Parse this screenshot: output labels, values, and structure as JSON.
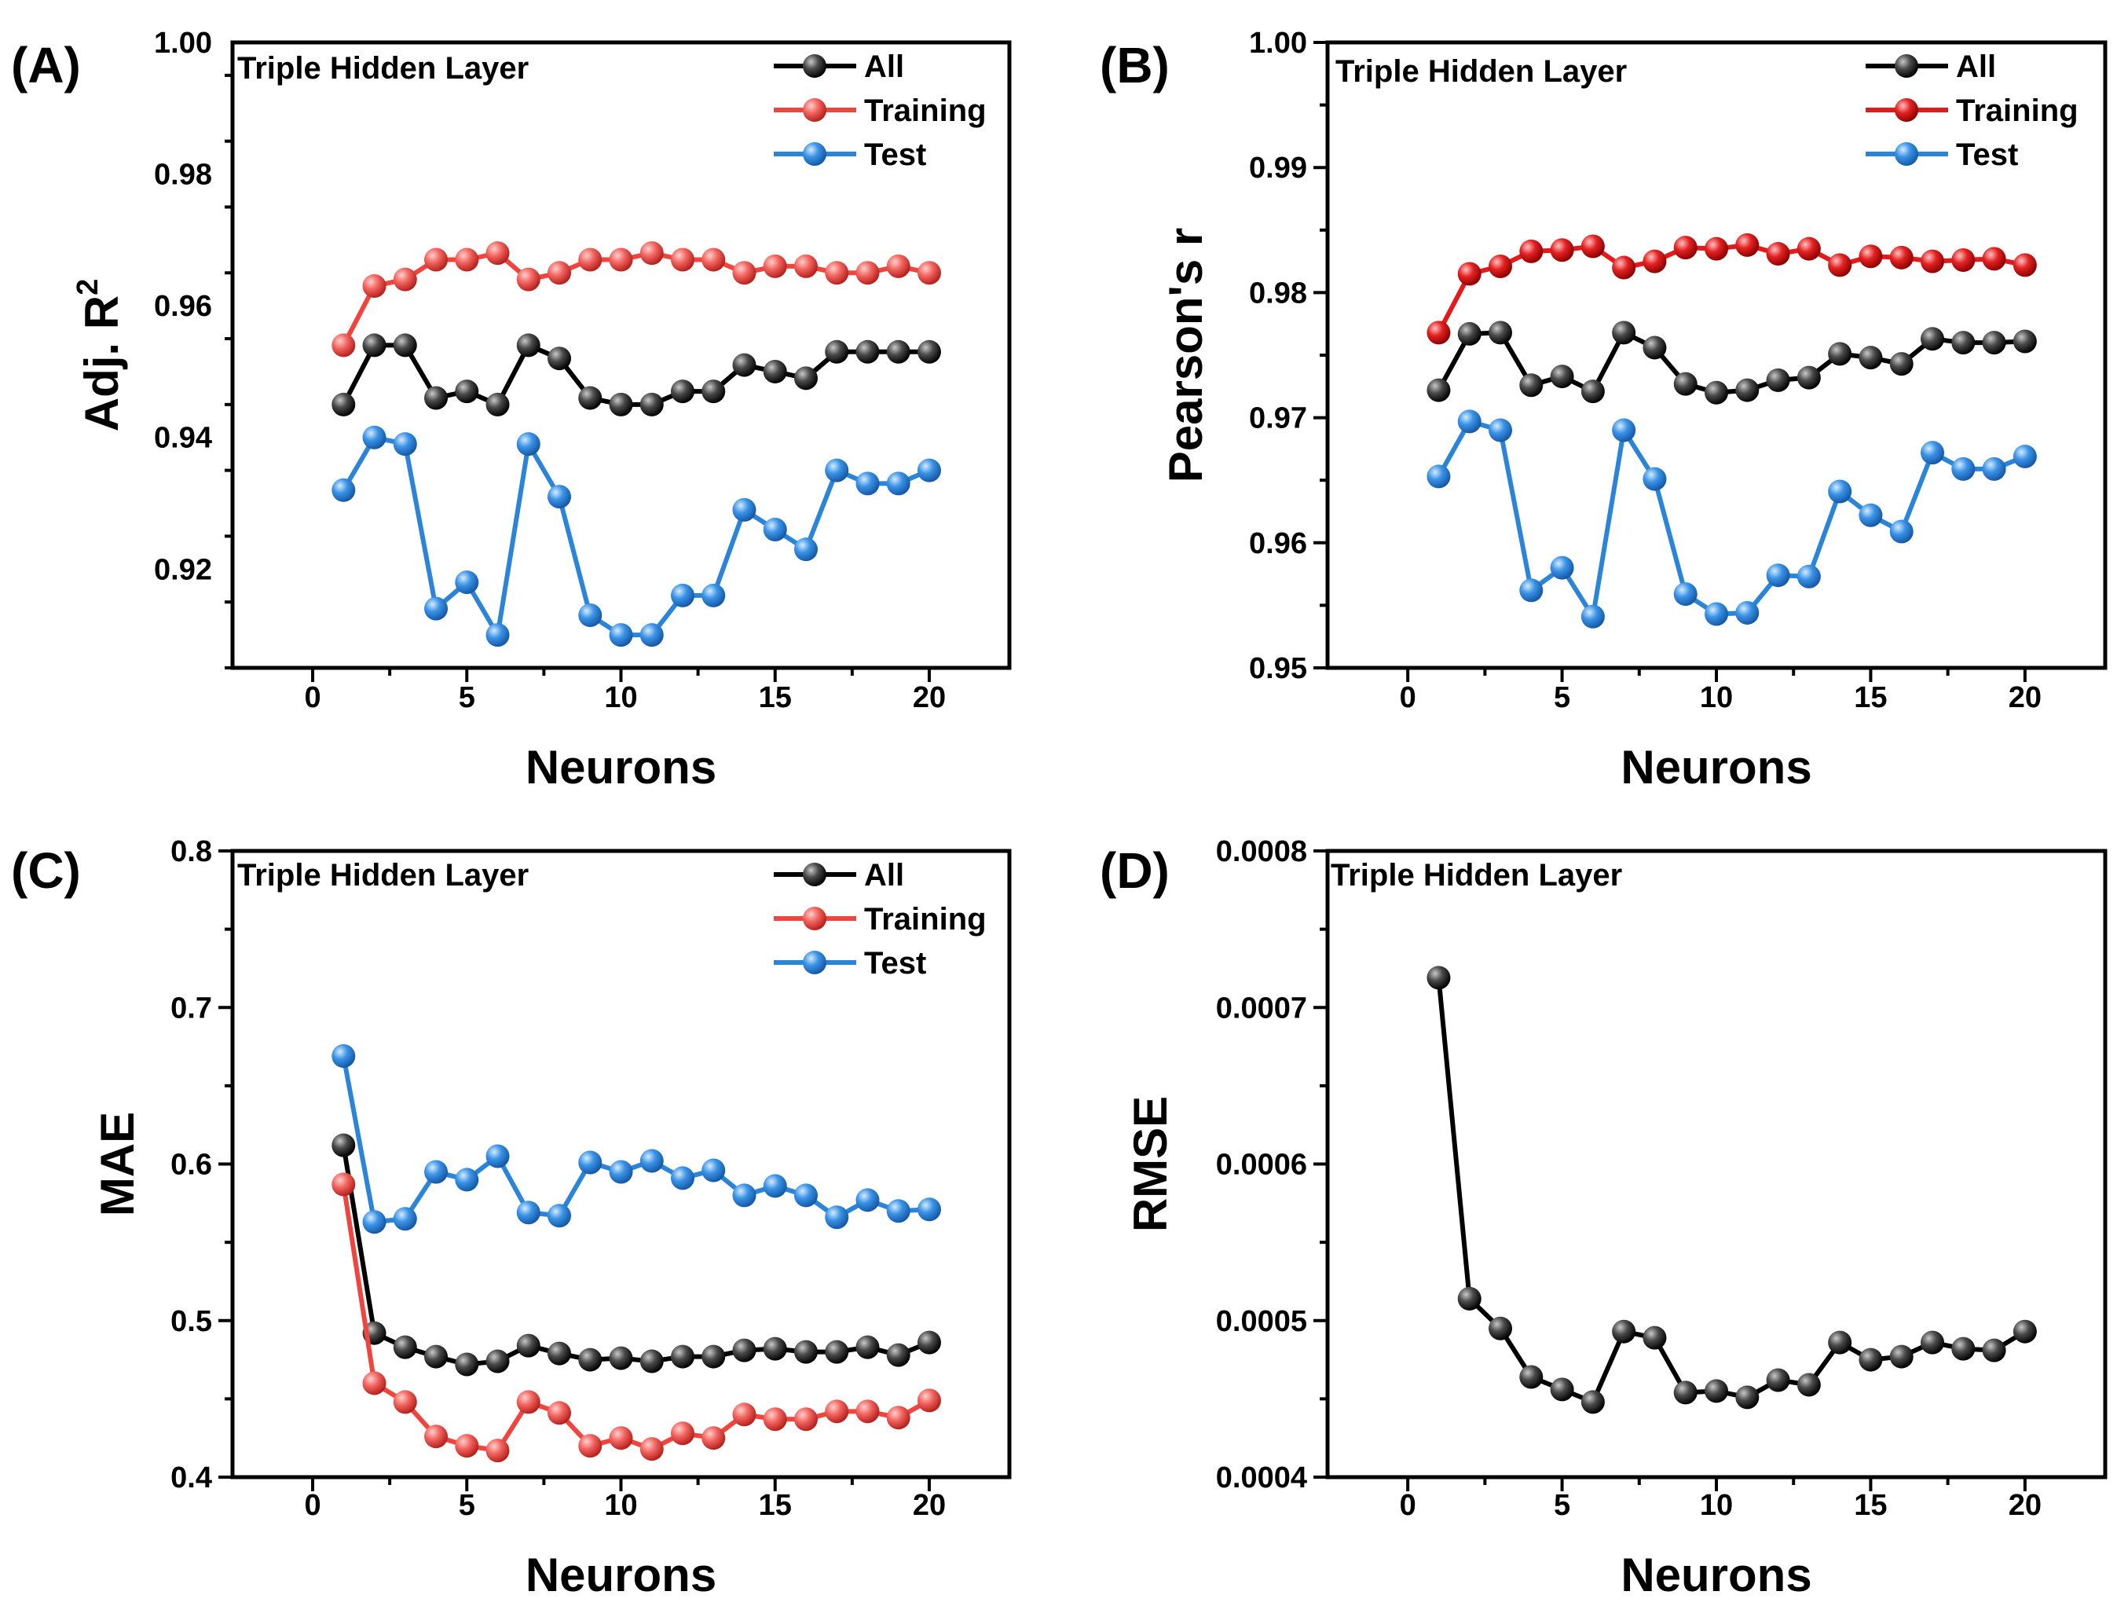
{
  "colors": {
    "All": "#000000",
    "Training_A": "#f0453f",
    "Training_B": "#e31a1c",
    "Training_C": "#f0453f",
    "Test": "#2a84d8"
  },
  "chart_data": [
    {
      "id": "A",
      "panel_label": "(A)",
      "type": "line",
      "title": "Triple Hidden Layer",
      "xlabel": "Neurons",
      "ylabel_main": "Adj. R",
      "ylabel_sup": "2",
      "xlim": [
        -2.6,
        22.6
      ],
      "ylim": [
        0.905,
        1.0
      ],
      "xticks": [
        0,
        5,
        10,
        15,
        20
      ],
      "yticks": [
        0.92,
        0.94,
        0.96,
        0.98,
        1.0
      ],
      "ytick_labels": [
        "0.92",
        "0.94",
        "0.96",
        "0.98",
        "1.00"
      ],
      "legend_position": "top-right",
      "x": [
        1,
        2,
        3,
        4,
        5,
        6,
        7,
        8,
        9,
        10,
        11,
        12,
        13,
        14,
        15,
        16,
        17,
        18,
        19,
        20
      ],
      "series": [
        {
          "name": "All",
          "color_key": "All",
          "values": [
            0.945,
            0.954,
            0.954,
            0.946,
            0.947,
            0.945,
            0.954,
            0.952,
            0.946,
            0.945,
            0.945,
            0.947,
            0.947,
            0.951,
            0.95,
            0.949,
            0.953,
            0.953,
            0.953,
            0.953
          ]
        },
        {
          "name": "Training",
          "color_key": "Training_A",
          "values": [
            0.954,
            0.963,
            0.964,
            0.967,
            0.967,
            0.968,
            0.964,
            0.965,
            0.967,
            0.967,
            0.968,
            0.967,
            0.967,
            0.965,
            0.966,
            0.966,
            0.965,
            0.965,
            0.966,
            0.965
          ]
        },
        {
          "name": "Test",
          "color_key": "Test",
          "values": [
            0.932,
            0.94,
            0.939,
            0.914,
            0.918,
            0.91,
            0.939,
            0.931,
            0.913,
            0.91,
            0.91,
            0.916,
            0.916,
            0.929,
            0.926,
            0.923,
            0.935,
            0.933,
            0.933,
            0.935
          ]
        }
      ]
    },
    {
      "id": "B",
      "panel_label": "(B)",
      "type": "line",
      "title": "Triple Hidden Layer",
      "xlabel": "Neurons",
      "ylabel_main": "Pearson's r",
      "ylabel_sup": "",
      "xlim": [
        -2.6,
        22.6
      ],
      "ylim": [
        0.95,
        1.0
      ],
      "xticks": [
        0,
        5,
        10,
        15,
        20
      ],
      "yticks": [
        0.95,
        0.96,
        0.97,
        0.98,
        0.99,
        1.0
      ],
      "ytick_labels": [
        "0.95",
        "0.96",
        "0.97",
        "0.98",
        "0.99",
        "1.00"
      ],
      "legend_position": "top-right",
      "x": [
        1,
        2,
        3,
        4,
        5,
        6,
        7,
        8,
        9,
        10,
        11,
        12,
        13,
        14,
        15,
        16,
        17,
        18,
        19,
        20
      ],
      "series": [
        {
          "name": "All",
          "color_key": "All",
          "values": [
            0.9722,
            0.9767,
            0.9768,
            0.9726,
            0.9733,
            0.9721,
            0.9768,
            0.9756,
            0.9727,
            0.972,
            0.9722,
            0.973,
            0.9732,
            0.9751,
            0.9748,
            0.9743,
            0.9763,
            0.976,
            0.976,
            0.9761
          ]
        },
        {
          "name": "Training",
          "color_key": "Training_B",
          "values": [
            0.9768,
            0.9815,
            0.9821,
            0.9833,
            0.9834,
            0.9837,
            0.982,
            0.9825,
            0.9836,
            0.9835,
            0.9838,
            0.9831,
            0.9835,
            0.9822,
            0.9829,
            0.9828,
            0.9825,
            0.9826,
            0.9827,
            0.9822
          ]
        },
        {
          "name": "Test",
          "color_key": "Test",
          "values": [
            0.9653,
            0.9697,
            0.969,
            0.9562,
            0.958,
            0.9541,
            0.969,
            0.9651,
            0.9559,
            0.9543,
            0.9544,
            0.9574,
            0.9573,
            0.9641,
            0.9622,
            0.9609,
            0.9672,
            0.9659,
            0.9659,
            0.9669
          ]
        }
      ]
    },
    {
      "id": "C",
      "panel_label": "(C)",
      "type": "line",
      "title": "Triple Hidden Layer",
      "xlabel": "Neurons",
      "ylabel_main": "MAE",
      "ylabel_sup": "",
      "xlim": [
        -2.6,
        22.6
      ],
      "ylim": [
        0.4,
        0.8
      ],
      "xticks": [
        0,
        5,
        10,
        15,
        20
      ],
      "yticks": [
        0.4,
        0.5,
        0.6,
        0.7,
        0.8
      ],
      "ytick_labels": [
        "0.4",
        "0.5",
        "0.6",
        "0.7",
        "0.8"
      ],
      "legend_position": "top-right",
      "x": [
        1,
        2,
        3,
        4,
        5,
        6,
        7,
        8,
        9,
        10,
        11,
        12,
        13,
        14,
        15,
        16,
        17,
        18,
        19,
        20
      ],
      "series": [
        {
          "name": "All",
          "color_key": "All",
          "values": [
            0.612,
            0.492,
            0.483,
            0.477,
            0.472,
            0.474,
            0.484,
            0.479,
            0.475,
            0.476,
            0.474,
            0.477,
            0.477,
            0.481,
            0.482,
            0.48,
            0.48,
            0.483,
            0.478,
            0.486
          ]
        },
        {
          "name": "Training",
          "color_key": "Training_C",
          "values": [
            0.587,
            0.46,
            0.448,
            0.426,
            0.42,
            0.417,
            0.448,
            0.441,
            0.42,
            0.425,
            0.418,
            0.428,
            0.425,
            0.44,
            0.437,
            0.437,
            0.442,
            0.442,
            0.438,
            0.449
          ]
        },
        {
          "name": "Test",
          "color_key": "Test",
          "values": [
            0.669,
            0.563,
            0.565,
            0.595,
            0.59,
            0.605,
            0.569,
            0.567,
            0.601,
            0.595,
            0.602,
            0.591,
            0.596,
            0.58,
            0.586,
            0.58,
            0.566,
            0.577,
            0.57,
            0.571
          ]
        }
      ]
    },
    {
      "id": "D",
      "panel_label": "(D)",
      "type": "line",
      "title": "Triple Hidden Layer",
      "xlabel": "Neurons",
      "ylabel_main": "RMSE",
      "ylabel_sup": "",
      "xlim": [
        -2.6,
        22.6
      ],
      "ylim": [
        0.0004,
        0.0008
      ],
      "xticks": [
        0,
        5,
        10,
        15,
        20
      ],
      "yticks": [
        0.0004,
        0.0005,
        0.0006,
        0.0007,
        0.0008
      ],
      "ytick_labels": [
        "0.0004",
        "0.0005",
        "0.0006",
        "0.0007",
        "0.0008"
      ],
      "legend_position": "none",
      "x": [
        1,
        2,
        3,
        4,
        5,
        6,
        7,
        8,
        9,
        10,
        11,
        12,
        13,
        14,
        15,
        16,
        17,
        18,
        19,
        20
      ],
      "series": [
        {
          "name": "",
          "color_key": "All",
          "values": [
            0.000719,
            0.000514,
            0.000495,
            0.000464,
            0.000456,
            0.000448,
            0.000493,
            0.000489,
            0.000454,
            0.000455,
            0.000451,
            0.000462,
            0.000459,
            0.000486,
            0.000475,
            0.000477,
            0.000486,
            0.000482,
            0.000481,
            0.000493
          ]
        }
      ]
    }
  ]
}
